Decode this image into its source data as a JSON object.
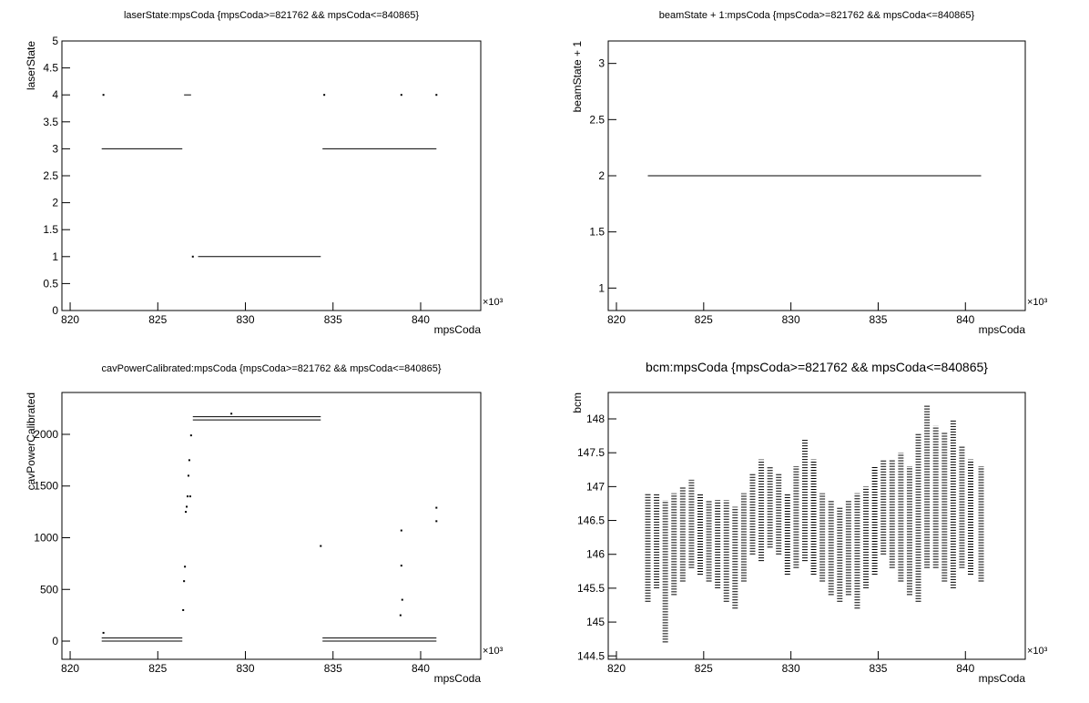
{
  "chart_data": [
    {
      "type": "scatter",
      "title": "laserState:mpsCoda {mpsCoda>=821762 && mpsCoda<=840865}",
      "x_label": "mpsCoda",
      "y_label": "laserState",
      "x_exponent": "×10³",
      "xlim": [
        819530,
        843430
      ],
      "xticks": [
        {
          "value": 820000,
          "label": "820"
        },
        {
          "value": 825000,
          "label": "825"
        },
        {
          "value": 830000,
          "label": "830"
        },
        {
          "value": 835000,
          "label": "835"
        },
        {
          "value": 840000,
          "label": "840"
        }
      ],
      "ylim": [
        0,
        5
      ],
      "yticks": [
        0,
        0.5,
        1,
        1.5,
        2,
        2.5,
        3,
        3.5,
        4,
        4.5,
        5
      ],
      "segments": {
        "x0": [
          821800,
          826500,
          827300,
          834400
        ],
        "x1": [
          826400,
          826900,
          834300,
          840900
        ],
        "y": [
          3,
          4,
          1,
          3
        ]
      },
      "points": {
        "x": [
          821900,
          827000,
          834500,
          838900,
          840900
        ],
        "y": [
          4,
          1,
          4,
          4,
          4
        ]
      }
    },
    {
      "type": "scatter",
      "title": "beamState + 1:mpsCoda {mpsCoda>=821762 && mpsCoda<=840865}",
      "x_label": "mpsCoda",
      "y_label": "beamState + 1",
      "x_exponent": "×10³",
      "xlim": [
        819530,
        843430
      ],
      "xticks": [
        {
          "value": 820000,
          "label": "820"
        },
        {
          "value": 825000,
          "label": "825"
        },
        {
          "value": 830000,
          "label": "830"
        },
        {
          "value": 835000,
          "label": "835"
        },
        {
          "value": 840000,
          "label": "840"
        }
      ],
      "ylim": [
        0.8,
        3.2
      ],
      "yticks": [
        1,
        1.5,
        2,
        2.5,
        3
      ],
      "segments": {
        "x0": [
          821800
        ],
        "x1": [
          840900
        ],
        "y": [
          2
        ]
      },
      "points": {
        "x": [],
        "y": []
      }
    },
    {
      "type": "scatter",
      "title": "cavPowerCalibrated:mpsCoda {mpsCoda>=821762 && mpsCoda<=840865}",
      "x_label": "mpsCoda",
      "y_label": "cavPowerCalibrated",
      "x_exponent": "×10³",
      "xlim": [
        819530,
        843430
      ],
      "xticks": [
        {
          "value": 820000,
          "label": "820"
        },
        {
          "value": 825000,
          "label": "825"
        },
        {
          "value": 830000,
          "label": "830"
        },
        {
          "value": 835000,
          "label": "835"
        },
        {
          "value": 840000,
          "label": "840"
        }
      ],
      "ylim": [
        -176,
        2405
      ],
      "yticks": [
        0,
        500,
        1000,
        1500,
        2000
      ],
      "segments": {
        "x0": [
          821800,
          821800,
          827000,
          827000,
          834400,
          834400
        ],
        "x1": [
          826400,
          826400,
          834300,
          834300,
          840900,
          840900
        ],
        "y": [
          0,
          30,
          2140,
          2170,
          0,
          30
        ]
      },
      "points": {
        "x": [
          821900,
          826450,
          826500,
          826550,
          826600,
          826650,
          826700,
          826750,
          826800,
          826850,
          826900,
          829200,
          834300,
          838900,
          838900,
          838950,
          838850,
          840900,
          840900
        ],
        "y": [
          80,
          300,
          580,
          720,
          1250,
          1300,
          1400,
          1600,
          1750,
          1400,
          1990,
          2200,
          920,
          1070,
          730,
          400,
          250,
          1290,
          1160
        ]
      }
    },
    {
      "type": "range",
      "title": "bcm:mpsCoda {mpsCoda>=821762 && mpsCoda<=840865}",
      "x_label": "mpsCoda",
      "y_label": "bcm",
      "x_exponent": "×10³",
      "xlim": [
        819530,
        843430
      ],
      "xticks": [
        {
          "value": 820000,
          "label": "820"
        },
        {
          "value": 825000,
          "label": "825"
        },
        {
          "value": 830000,
          "label": "830"
        },
        {
          "value": 835000,
          "label": "835"
        },
        {
          "value": 840000,
          "label": "840"
        }
      ],
      "ylim": [
        144.45,
        148.39
      ],
      "yticks": [
        144.5,
        145,
        145.5,
        146,
        146.5,
        147,
        147.5,
        148
      ],
      "x": [
        821800,
        822300,
        822800,
        823300,
        823800,
        824300,
        824800,
        825300,
        825800,
        826300,
        826800,
        827300,
        827800,
        828300,
        828800,
        829300,
        829800,
        830300,
        830800,
        831300,
        831800,
        832300,
        832800,
        833300,
        833800,
        834300,
        834800,
        835300,
        835800,
        836300,
        836800,
        837300,
        837800,
        838300,
        838800,
        839300,
        839800,
        840300,
        840900
      ],
      "low": [
        145.3,
        145.5,
        144.7,
        145.4,
        145.6,
        145.8,
        145.7,
        145.6,
        145.5,
        145.3,
        145.2,
        145.6,
        146.0,
        145.9,
        146.1,
        146.0,
        145.7,
        145.8,
        145.9,
        145.7,
        145.6,
        145.4,
        145.3,
        145.4,
        145.2,
        145.5,
        145.7,
        146.0,
        145.8,
        145.6,
        145.4,
        145.3,
        145.8,
        145.8,
        145.6,
        145.5,
        145.8,
        145.7,
        145.6
      ],
      "high": [
        146.9,
        146.9,
        146.8,
        146.9,
        147.0,
        147.1,
        146.9,
        146.8,
        146.8,
        146.8,
        146.7,
        146.9,
        147.2,
        147.4,
        147.3,
        147.2,
        146.9,
        147.3,
        147.7,
        147.4,
        146.9,
        146.8,
        146.7,
        146.8,
        146.9,
        147.0,
        147.3,
        147.4,
        147.4,
        147.5,
        147.3,
        147.8,
        148.2,
        147.9,
        147.8,
        148.0,
        147.6,
        147.4,
        147.3
      ]
    }
  ]
}
